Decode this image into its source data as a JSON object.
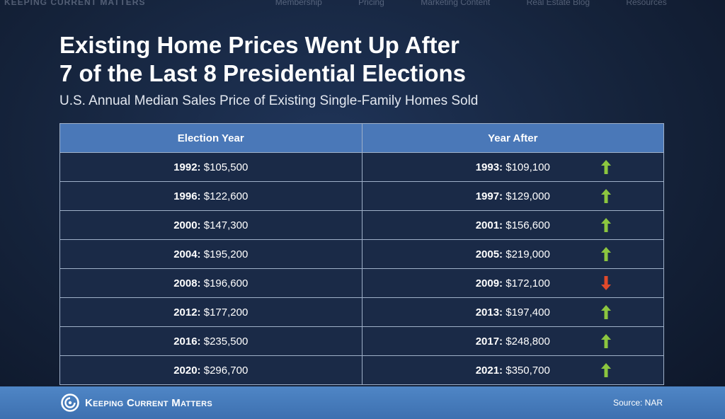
{
  "ghost_nav": {
    "brand": "KEEPING CURRENT MATTERS",
    "items": [
      "Membership",
      "Pricing",
      "Marketing Content",
      "Real Estate Blog",
      "Resources"
    ]
  },
  "title_line1": "Existing Home Prices Went Up After",
  "title_line2": "7 of the Last 8 Presidential Elections",
  "subtitle": "U.S. Annual Median Sales Price of Existing Single-Family Homes Sold",
  "table": {
    "headers": [
      "Election Year",
      "Year After"
    ],
    "rows": [
      {
        "year": "1992:",
        "price": "$105,500",
        "after_year": "1993:",
        "after_price": "$109,100",
        "trend": "up"
      },
      {
        "year": "1996:",
        "price": "$122,600",
        "after_year": "1997:",
        "after_price": "$129,000",
        "trend": "up"
      },
      {
        "year": "2000:",
        "price": "$147,300",
        "after_year": "2001:",
        "after_price": "$156,600",
        "trend": "up"
      },
      {
        "year": "2004:",
        "price": "$195,200",
        "after_year": "2005:",
        "after_price": "$219,000",
        "trend": "up"
      },
      {
        "year": "2008:",
        "price": "$196,600",
        "after_year": "2009:",
        "after_price": "$172,100",
        "trend": "down"
      },
      {
        "year": "2012:",
        "price": "$177,200",
        "after_year": "2013:",
        "after_price": "$197,400",
        "trend": "up"
      },
      {
        "year": "2016:",
        "price": "$235,500",
        "after_year": "2017:",
        "after_price": "$248,800",
        "trend": "up"
      },
      {
        "year": "2020:",
        "price": "$296,700",
        "after_year": "2021:",
        "after_price": "$350,700",
        "trend": "up"
      }
    ]
  },
  "footer": {
    "logo_text": "Keeping Current Matters",
    "source": "Source: NAR"
  },
  "colors": {
    "header_blue": "#4a78b8",
    "row_bg": "#1a2a47",
    "up_arrow": "#8cc63f",
    "down_arrow": "#e0492b"
  }
}
